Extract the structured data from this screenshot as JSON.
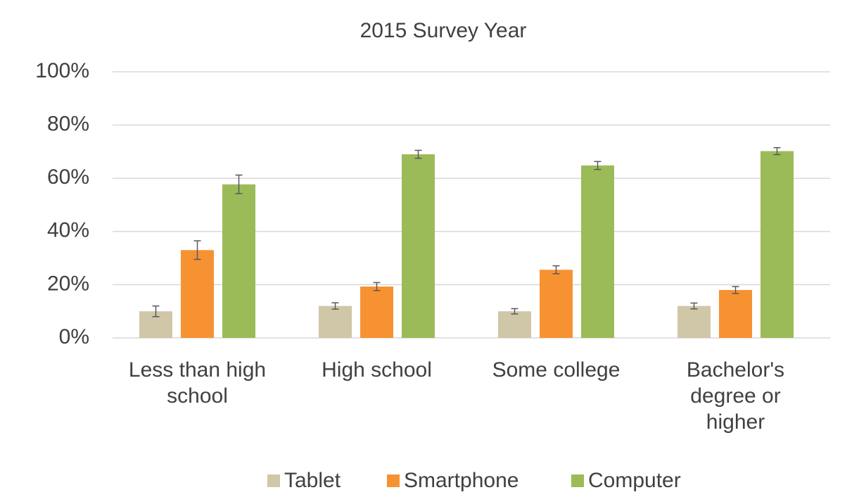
{
  "chart_data": {
    "type": "bar",
    "title": "2015 Survey Year",
    "categories": [
      "Less than high school",
      "High school",
      "Some college",
      "Bachelor's degree or higher"
    ],
    "series": [
      {
        "name": "Tablet",
        "color": "#d0c6a8",
        "values": [
          10,
          12,
          10,
          12
        ],
        "errors": [
          2,
          1.2,
          1,
          1.1
        ]
      },
      {
        "name": "Smartphone",
        "color": "#f79232",
        "values": [
          33,
          19.3,
          25.6,
          18
        ],
        "errors": [
          3.5,
          1.5,
          1.5,
          1.3
        ]
      },
      {
        "name": "Computer",
        "color": "#9bbb59",
        "values": [
          57.7,
          69,
          64.8,
          70.2
        ],
        "errors": [
          3.5,
          1.5,
          1.5,
          1.3
        ]
      }
    ],
    "ylim": [
      0,
      100
    ],
    "yticks": [
      {
        "value": 0,
        "label": "0%"
      },
      {
        "value": 20,
        "label": "20%"
      },
      {
        "value": 40,
        "label": "40%"
      },
      {
        "value": 60,
        "label": "60%"
      },
      {
        "value": 80,
        "label": "80%"
      },
      {
        "value": 100,
        "label": "100%"
      }
    ],
    "grid": true,
    "legend": "bottom"
  }
}
